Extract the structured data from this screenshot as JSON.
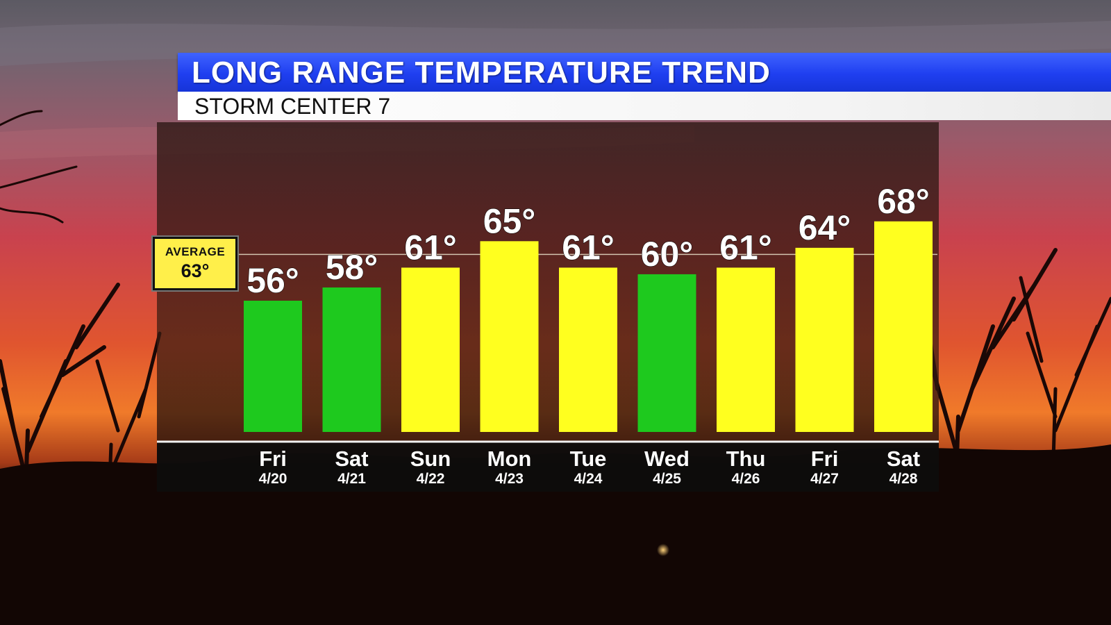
{
  "header": {
    "title": "LONG RANGE TEMPERATURE TREND",
    "subtitle": "STORM CENTER 7"
  },
  "average": {
    "label": "AVERAGE",
    "value_text": "63°",
    "value": 63
  },
  "colors": {
    "below_average": "#1ec91e",
    "above_average": "#ffff1f",
    "header_blue": "#1f3ff0"
  },
  "chart_data": {
    "type": "bar",
    "title": "LONG RANGE TEMPERATURE TREND",
    "categories": [
      "Fri",
      "Sat",
      "Sun",
      "Mon",
      "Tue",
      "Wed",
      "Thu",
      "Fri",
      "Sat"
    ],
    "dates": [
      "4/20",
      "4/21",
      "4/22",
      "4/23",
      "4/24",
      "4/25",
      "4/26",
      "4/27",
      "4/28"
    ],
    "values": [
      56,
      58,
      61,
      65,
      61,
      60,
      61,
      64,
      68
    ],
    "value_labels": [
      "56°",
      "58°",
      "61°",
      "65°",
      "61°",
      "60°",
      "61°",
      "64°",
      "68°"
    ],
    "reference_line": 63,
    "bar_colors": [
      "#1ec91e",
      "#1ec91e",
      "#ffff1f",
      "#ffff1f",
      "#ffff1f",
      "#1ec91e",
      "#ffff1f",
      "#ffff1f",
      "#ffff1f"
    ],
    "grid": false,
    "legend": "none"
  }
}
